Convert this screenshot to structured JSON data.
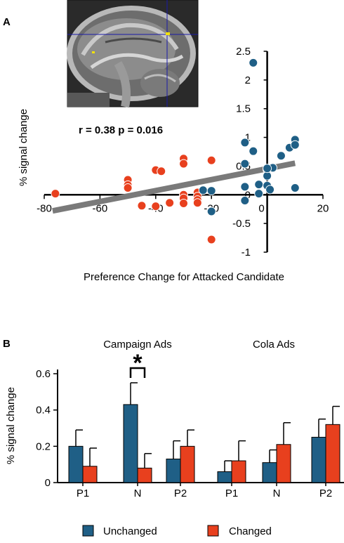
{
  "panel_a_label": "A",
  "panel_b_label": "B",
  "colors": {
    "unchanged": "#1f5f86",
    "changed": "#e8401e",
    "fit_line": "#7a7a7a",
    "axis": "#000000"
  },
  "brain_image": {
    "icon": "mri-sagittal-brain-slice-icon",
    "crosshair_color": "#1a1aa8",
    "activation_color": "#f2e20a"
  },
  "chart_data": [
    {
      "type": "scatter",
      "annotation": "r = 0.38 p = 0.016",
      "xlabel": "Preference Change for Attacked Candidate",
      "ylabel": "% signal change",
      "xlim": [
        -80,
        20
      ],
      "ylim": [
        -1,
        2.5
      ],
      "x_ticks": [
        "-80",
        "-60",
        "-40",
        "-20",
        "0",
        "20"
      ],
      "y_ticks": [
        "2.5",
        "2",
        "1.5",
        "1",
        "0.5",
        "0",
        "-0.5",
        "-1"
      ],
      "fit_line": {
        "x": [
          -77,
          10
        ],
        "y": [
          -0.28,
          0.55
        ]
      },
      "series": [
        {
          "color": "#e8401e",
          "points": [
            [
              -76,
              0.02
            ],
            [
              -50,
              0.26
            ],
            [
              -50,
              0.17
            ],
            [
              -50,
              0.12
            ],
            [
              -45,
              -0.19
            ],
            [
              -40,
              0.43
            ],
            [
              -38,
              0.41
            ],
            [
              -40,
              -0.2
            ],
            [
              -35,
              -0.14
            ],
            [
              -30,
              0.63
            ],
            [
              -30,
              0.54
            ],
            [
              -30,
              0.0
            ],
            [
              -30,
              -0.06
            ],
            [
              -30,
              -0.15
            ],
            [
              -25,
              0.04
            ],
            [
              -25,
              -0.03
            ],
            [
              -25,
              -0.09
            ],
            [
              -25,
              -0.14
            ],
            [
              -20,
              0.6
            ],
            [
              -20,
              -0.78
            ]
          ]
        },
        {
          "color": "#1f5f86",
          "points": [
            [
              -5,
              2.3
            ],
            [
              -8,
              0.91
            ],
            [
              -5,
              0.76
            ],
            [
              -8,
              0.54
            ],
            [
              -23,
              0.08
            ],
            [
              -20,
              0.07
            ],
            [
              -20,
              -0.29
            ],
            [
              -8,
              0.14
            ],
            [
              -8,
              -0.1
            ],
            [
              -3,
              0.18
            ],
            [
              -3,
              0.02
            ],
            [
              0,
              0.44
            ],
            [
              0,
              0.33
            ],
            [
              0,
              0.16
            ],
            [
              1,
              0.09
            ],
            [
              2,
              0.47
            ],
            [
              0,
              0.46
            ],
            [
              5,
              0.68
            ],
            [
              8,
              0.82
            ],
            [
              10,
              0.96
            ],
            [
              10,
              0.87
            ],
            [
              10,
              0.12
            ]
          ]
        }
      ]
    },
    {
      "type": "bar",
      "ylabel": "% signal change",
      "ylim": [
        0,
        0.6
      ],
      "y_ticks": [
        "0.6",
        "0.4",
        "0.2",
        "0"
      ],
      "groups": [
        "Campaign Ads",
        "Cola Ads"
      ],
      "categories": [
        "P1",
        "N",
        "P2",
        "P1",
        "N",
        "P2"
      ],
      "series": [
        {
          "name": "Unchanged",
          "color": "#1f5f86",
          "values": [
            0.2,
            0.43,
            0.13,
            0.06,
            0.11,
            0.25
          ],
          "errors": [
            0.09,
            0.12,
            0.1,
            0.06,
            0.07,
            0.1
          ]
        },
        {
          "name": "Changed",
          "color": "#e8401e",
          "values": [
            0.09,
            0.08,
            0.2,
            0.12,
            0.21,
            0.32
          ],
          "errors": [
            0.1,
            0.08,
            0.09,
            0.11,
            0.12,
            0.1
          ]
        }
      ],
      "significance": {
        "category_index": 1,
        "marker": "*"
      },
      "legend": {
        "position": "bottom"
      }
    }
  ]
}
